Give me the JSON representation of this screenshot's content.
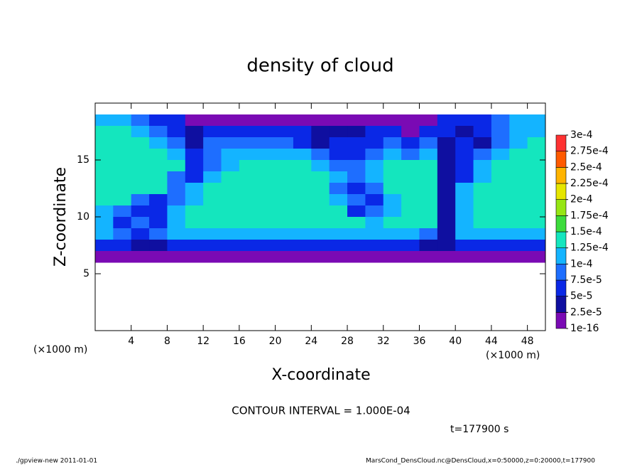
{
  "chart_data": {
    "type": "heatmap",
    "title": "density of cloud",
    "x_label": "X-coordinate",
    "y_label": "Z-coordinate",
    "x_unit_left": "(×1000 m)",
    "x_unit_right": "(×1000 m)",
    "contour_note": "CONTOUR INTERVAL = 1.000E-04",
    "time_note": "t=177900 s",
    "footer_left": "./gpview-new  2011-01-01",
    "footer_right": "MarsCond_DensCloud.nc@DensCloud,x=0:50000,z=0:20000,t=177900",
    "xlim": [
      0,
      50
    ],
    "ylim": [
      0,
      20
    ],
    "xticks": [
      4,
      8,
      12,
      16,
      20,
      24,
      28,
      32,
      36,
      40,
      44,
      48
    ],
    "yticks": [
      5,
      10,
      15
    ],
    "x": [
      1,
      3,
      5,
      7,
      9,
      11,
      13,
      15,
      17,
      19,
      21,
      23,
      25,
      27,
      29,
      31,
      33,
      35,
      37,
      39,
      41,
      43,
      45,
      47,
      49
    ],
    "y": [
      18.5,
      17.5,
      16.5,
      15.5,
      14.5,
      13.5,
      12.5,
      11.5,
      10.5,
      9.5,
      8.5,
      7.5,
      6.5
    ],
    "values": [
      [
        0.00011,
        0.00011,
        9e-05,
        6e-05,
        6e-05,
        1e-05,
        1e-05,
        1e-05,
        1e-05,
        1e-05,
        1e-05,
        1e-05,
        1e-05,
        1e-05,
        1e-05,
        1e-05,
        1e-05,
        1e-05,
        1e-05,
        6e-05,
        6e-05,
        6e-05,
        9e-05,
        0.00011,
        0.00011
      ],
      [
        0.00014,
        0.00014,
        0.00011,
        9e-05,
        6e-05,
        4e-05,
        6e-05,
        6e-05,
        6e-05,
        6e-05,
        6e-05,
        6e-05,
        4e-05,
        4e-05,
        4e-05,
        6e-05,
        6e-05,
        1e-05,
        6e-05,
        6e-05,
        4e-05,
        6e-05,
        9e-05,
        0.00011,
        0.00011
      ],
      [
        0.00014,
        0.00014,
        0.00014,
        0.00011,
        9e-05,
        4e-05,
        9e-05,
        9e-05,
        9e-05,
        9e-05,
        9e-05,
        6e-05,
        4e-05,
        6e-05,
        6e-05,
        6e-05,
        9e-05,
        6e-05,
        9e-05,
        4e-05,
        6e-05,
        4e-05,
        9e-05,
        0.00011,
        0.00014
      ],
      [
        0.00014,
        0.00014,
        0.00014,
        0.00014,
        0.00011,
        6e-05,
        9e-05,
        0.00011,
        0.00011,
        0.00011,
        0.00011,
        0.00011,
        9e-05,
        6e-05,
        6e-05,
        9e-05,
        0.00011,
        9e-05,
        0.00011,
        4e-05,
        6e-05,
        9e-05,
        0.00011,
        0.00014,
        0.00014
      ],
      [
        0.00014,
        0.00014,
        0.00014,
        0.00014,
        0.00014,
        6e-05,
        9e-05,
        0.00011,
        0.00014,
        0.00014,
        0.00014,
        0.00014,
        0.00011,
        9e-05,
        9e-05,
        0.00011,
        0.00014,
        0.00014,
        0.00014,
        4e-05,
        6e-05,
        0.00011,
        0.00014,
        0.00014,
        0.00014
      ],
      [
        0.00014,
        0.00014,
        0.00014,
        0.00014,
        9e-05,
        6e-05,
        0.00011,
        0.00014,
        0.00014,
        0.00014,
        0.00014,
        0.00014,
        0.00014,
        0.00011,
        9e-05,
        0.00011,
        0.00014,
        0.00014,
        0.00014,
        4e-05,
        6e-05,
        0.00011,
        0.00014,
        0.00014,
        0.00014
      ],
      [
        0.00014,
        0.00014,
        0.00014,
        0.00014,
        9e-05,
        0.00011,
        0.00014,
        0.00014,
        0.00014,
        0.00014,
        0.00014,
        0.00014,
        0.00014,
        9e-05,
        6e-05,
        9e-05,
        0.00014,
        0.00014,
        0.00014,
        4e-05,
        0.00011,
        0.00014,
        0.00014,
        0.00014,
        0.00014
      ],
      [
        0.00014,
        0.00014,
        9e-05,
        6e-05,
        9e-05,
        0.00011,
        0.00014,
        0.00014,
        0.00014,
        0.00014,
        0.00014,
        0.00014,
        0.00014,
        0.00011,
        9e-05,
        6e-05,
        0.00011,
        0.00014,
        0.00014,
        4e-05,
        0.00011,
        0.00014,
        0.00014,
        0.00014,
        0.00014
      ],
      [
        0.00011,
        9e-05,
        6e-05,
        6e-05,
        0.00011,
        0.00014,
        0.00014,
        0.00014,
        0.00014,
        0.00014,
        0.00014,
        0.00014,
        0.00014,
        0.00014,
        6e-05,
        9e-05,
        0.00011,
        0.00014,
        0.00014,
        4e-05,
        0.00011,
        0.00014,
        0.00014,
        0.00014,
        0.00014
      ],
      [
        0.00011,
        6e-05,
        9e-05,
        6e-05,
        0.00011,
        0.00014,
        0.00014,
        0.00014,
        0.00014,
        0.00014,
        0.00014,
        0.00014,
        0.00014,
        0.00014,
        0.00014,
        0.00011,
        0.00014,
        0.00014,
        0.00014,
        4e-05,
        0.00011,
        0.00014,
        0.00014,
        0.00014,
        0.00014
      ],
      [
        0.00011,
        9e-05,
        6e-05,
        9e-05,
        0.00011,
        0.00011,
        0.00011,
        0.00011,
        0.00011,
        0.00011,
        0.00011,
        0.00011,
        0.00011,
        0.00011,
        0.00011,
        0.00011,
        0.00011,
        0.00011,
        9e-05,
        4e-05,
        0.00011,
        0.00011,
        0.00011,
        0.00011,
        0.00011
      ],
      [
        6e-05,
        6e-05,
        4e-05,
        4e-05,
        6e-05,
        6e-05,
        6e-05,
        6e-05,
        6e-05,
        6e-05,
        6e-05,
        6e-05,
        6e-05,
        6e-05,
        6e-05,
        6e-05,
        6e-05,
        6e-05,
        4e-05,
        4e-05,
        6e-05,
        6e-05,
        6e-05,
        6e-05,
        6e-05
      ],
      [
        1e-05,
        1e-05,
        1e-05,
        1e-05,
        1e-05,
        1e-05,
        1e-05,
        1e-05,
        1e-05,
        1e-05,
        1e-05,
        1e-05,
        1e-05,
        1e-05,
        1e-05,
        1e-05,
        1e-05,
        1e-05,
        1e-05,
        1e-05,
        1e-05,
        1e-05,
        1e-05,
        1e-05,
        1e-05
      ]
    ],
    "levels": [
      {
        "value": 1e-16,
        "label": "1e-16"
      },
      {
        "value": 2.5e-05,
        "label": "2.5e-5"
      },
      {
        "value": 5e-05,
        "label": "5e-5"
      },
      {
        "value": 7.5e-05,
        "label": "7.5e-5"
      },
      {
        "value": 0.0001,
        "label": "1e-4"
      },
      {
        "value": 0.000125,
        "label": "1.25e-4"
      },
      {
        "value": 0.00015,
        "label": "1.5e-4"
      },
      {
        "value": 0.000175,
        "label": "1.75e-4"
      },
      {
        "value": 0.0002,
        "label": "2e-4"
      },
      {
        "value": 0.000225,
        "label": "2.25e-4"
      },
      {
        "value": 0.00025,
        "label": "2.5e-4"
      },
      {
        "value": 0.000275,
        "label": "2.75e-4"
      },
      {
        "value": 0.0003,
        "label": "3e-4"
      }
    ],
    "colors": [
      "#7a0ab4",
      "#0f0fa0",
      "#0a28e6",
      "#1e6eff",
      "#14b4ff",
      "#14e6be",
      "#3cdc3c",
      "#96e614",
      "#e6e600",
      "#ffb400",
      "#ff5a00",
      "#ff3232",
      "#ff8c8c"
    ]
  }
}
